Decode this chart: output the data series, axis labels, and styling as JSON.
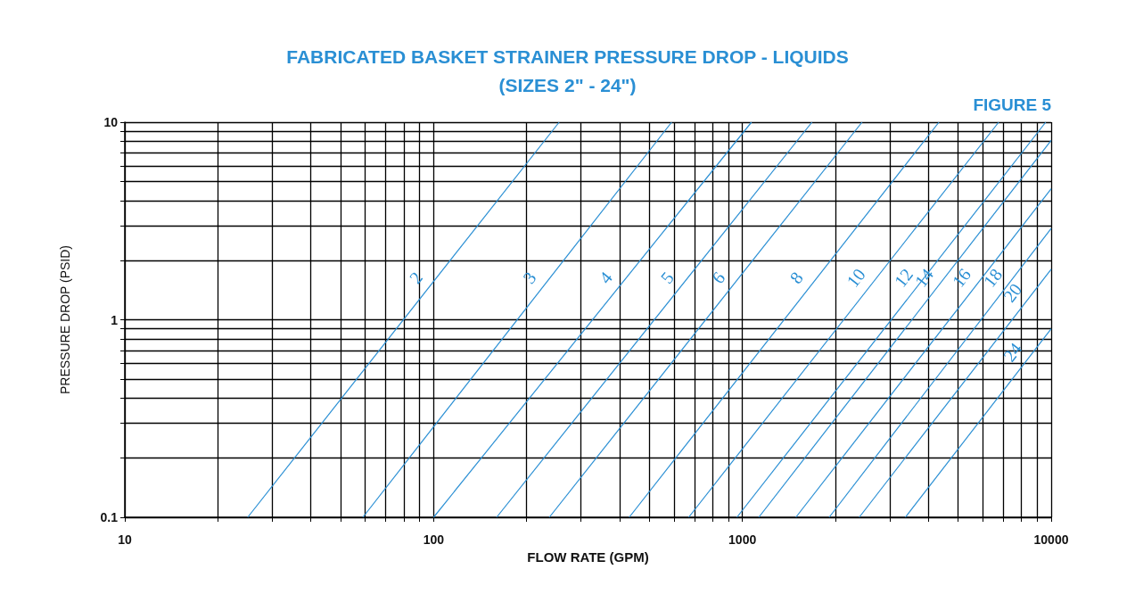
{
  "chart_data": {
    "type": "line",
    "title": "FABRICATED BASKET STRAINER PRESSURE DROP - LIQUIDS",
    "subtitle": "(SIZES 2\" - 24\")",
    "xlabel": "FLOW RATE (GPM)",
    "ylabel": "PRESSURE DROP (PSID)",
    "annotations": [
      "FIGURE 5"
    ],
    "log": "xy",
    "grid": true,
    "marker": "none",
    "line_style": "solid",
    "xlim": [
      10,
      10000
    ],
    "ylim": [
      0.1,
      10
    ],
    "xticks": [
      10,
      {
        "value": 20,
        "label": null
      },
      {
        "value": 30,
        "label": null
      },
      {
        "value": 40,
        "label": null
      },
      {
        "value": 50,
        "label": null
      },
      {
        "value": 60,
        "label": null
      },
      {
        "value": 70,
        "label": null
      },
      {
        "value": 80,
        "label": null
      },
      {
        "value": 90,
        "label": null
      },
      100,
      {
        "value": 200,
        "label": null
      },
      {
        "value": 300,
        "label": null
      },
      {
        "value": 400,
        "label": null
      },
      {
        "value": 500,
        "label": null
      },
      {
        "value": 600,
        "label": null
      },
      {
        "value": 700,
        "label": null
      },
      {
        "value": 800,
        "label": null
      },
      {
        "value": 900,
        "label": null
      },
      1000,
      {
        "value": 2000,
        "label": null
      },
      {
        "value": 3000,
        "label": null
      },
      {
        "value": 4000,
        "label": null
      },
      {
        "value": 5000,
        "label": null
      },
      {
        "value": 6000,
        "label": null
      },
      {
        "value": 7000,
        "label": null
      },
      {
        "value": 8000,
        "label": null
      },
      {
        "value": 9000,
        "label": null
      },
      10000
    ],
    "yticks": [
      0.1,
      {
        "value": 0.2,
        "label": null
      },
      {
        "value": 0.3,
        "label": null
      },
      {
        "value": 0.4,
        "label": null
      },
      {
        "value": 0.5,
        "label": null
      },
      {
        "value": 0.6,
        "label": null
      },
      {
        "value": 0.7,
        "label": null
      },
      {
        "value": 0.8,
        "label": null
      },
      {
        "value": 0.9,
        "label": null
      },
      1,
      {
        "value": 2,
        "label": null
      },
      {
        "value": 3,
        "label": null
      },
      {
        "value": 4,
        "label": null
      },
      {
        "value": 5,
        "label": null
      },
      {
        "value": 6,
        "label": null
      },
      {
        "value": 7,
        "label": null
      },
      {
        "value": 8,
        "label": null
      },
      {
        "value": 9,
        "label": null
      },
      10
    ],
    "series": [
      {
        "name": "2",
        "color": "#2a8fd4",
        "x": [
          25,
          255
        ],
        "values": [
          0.1,
          10
        ]
      },
      {
        "name": "3",
        "color": "#2a8fd4",
        "x": [
          59,
          590
        ],
        "values": [
          0.1,
          10
        ]
      },
      {
        "name": "4",
        "color": "#2a8fd4",
        "x": [
          100,
          1070
        ],
        "values": [
          0.1,
          10
        ]
      },
      {
        "name": "5",
        "color": "#2a8fd4",
        "x": [
          160,
          1680
        ],
        "values": [
          0.1,
          10
        ]
      },
      {
        "name": "6",
        "color": "#2a8fd4",
        "x": [
          237,
          2440
        ],
        "values": [
          0.1,
          10
        ]
      },
      {
        "name": "8",
        "color": "#2a8fd4",
        "x": [
          430,
          4330
        ],
        "values": [
          0.1,
          10
        ]
      },
      {
        "name": "10",
        "color": "#2a8fd4",
        "x": [
          670,
          6760
        ],
        "values": [
          0.1,
          10
        ]
      },
      {
        "name": "12",
        "color": "#2a8fd4",
        "x": [
          960,
          9600
        ],
        "values": [
          0.1,
          10
        ]
      },
      {
        "name": "14",
        "color": "#2a8fd4",
        "x": [
          1130,
          10000
        ],
        "values": [
          0.1,
          8.1
        ]
      },
      {
        "name": "16",
        "color": "#2a8fd4",
        "x": [
          1490,
          10000
        ],
        "values": [
          0.1,
          4.6
        ]
      },
      {
        "name": "18",
        "color": "#2a8fd4",
        "x": [
          1910,
          10000
        ],
        "values": [
          0.1,
          2.9
        ]
      },
      {
        "name": "20",
        "color": "#2a8fd4",
        "x": [
          2390,
          10000
        ],
        "values": [
          0.1,
          1.8
        ]
      },
      {
        "name": "24",
        "color": "#2a8fd4",
        "x": [
          3370,
          10000
        ],
        "values": [
          0.1,
          0.9
        ]
      }
    ]
  }
}
